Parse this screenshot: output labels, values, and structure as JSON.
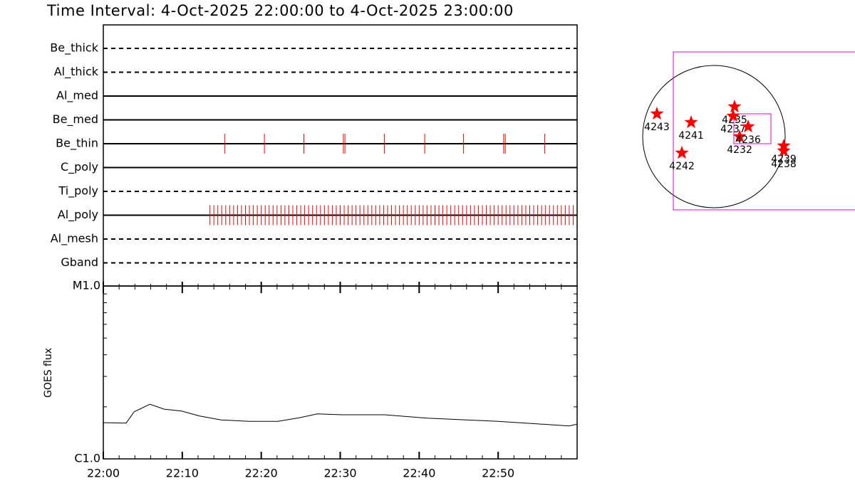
{
  "chart_data": [
    {
      "type": "timeline",
      "title": "Time Interval:  4-Oct-2025 22:00:00 to  4-Oct-2025 23:00:00",
      "xlim": [
        0,
        60
      ],
      "color": "#ff0000",
      "rows": [
        {
          "name": "Be_thick",
          "style": "dashed",
          "values": []
        },
        {
          "name": "Al_thick",
          "style": "dashed",
          "values": []
        },
        {
          "name": "Al_med",
          "style": "solid",
          "values": []
        },
        {
          "name": "Be_med",
          "style": "solid",
          "values": []
        },
        {
          "name": "Be_thin",
          "style": "solid",
          "values": [
            15.4,
            20.4,
            25.4,
            30.4,
            30.6,
            35.6,
            40.7,
            45.6,
            50.7,
            50.9,
            55.9
          ]
        },
        {
          "name": "C_poly",
          "style": "solid",
          "values": []
        },
        {
          "name": "Ti_poly",
          "style": "dashed",
          "values": []
        },
        {
          "name": "Al_poly",
          "style": "solid",
          "values": [
            13.5,
            14,
            14.5,
            15,
            15.5,
            16,
            16.5,
            17,
            17.5,
            18,
            18.5,
            19,
            19.5,
            20,
            20.5,
            21,
            21.5,
            22,
            22.5,
            23,
            23.5,
            24,
            24.5,
            25,
            25.5,
            26,
            26.5,
            27,
            27.5,
            28,
            28.5,
            29,
            29.5,
            30,
            30.5,
            31,
            31.5,
            32,
            32.5,
            33,
            33.5,
            34,
            34.5,
            35,
            35.5,
            36,
            36.5,
            37,
            37.5,
            38,
            38.5,
            39,
            39.5,
            40,
            40.5,
            41,
            41.5,
            42,
            42.5,
            43,
            43.5,
            44,
            44.5,
            45,
            45.5,
            46,
            46.5,
            47,
            47.5,
            48,
            48.5,
            49,
            49.5,
            50,
            50.5,
            51,
            51.5,
            52,
            52.5,
            53,
            53.5,
            54,
            54.5,
            55,
            55.5,
            56,
            56.5,
            57,
            57.5,
            58,
            58.5,
            59,
            59.5
          ]
        },
        {
          "name": "Al_mesh",
          "style": "dashed",
          "values": []
        },
        {
          "name": "Gband",
          "style": "dashed",
          "values": []
        }
      ]
    },
    {
      "type": "line",
      "ylabel": "GOES flux",
      "log": true,
      "color": "#000000",
      "x": [
        0,
        2.9,
        3.9,
        5.9,
        7.7,
        9.9,
        12.2,
        14.9,
        18.5,
        22.1,
        24.8,
        27.1,
        30.2,
        35.6,
        41.0,
        50.0,
        55.4,
        59.0,
        60
      ],
      "values": [
        1.62e-06,
        1.61e-06,
        1.87e-06,
        2.07e-06,
        1.94e-06,
        1.89e-06,
        1.77e-06,
        1.68e-06,
        1.65e-06,
        1.65e-06,
        1.73e-06,
        1.82e-06,
        1.8e-06,
        1.8e-06,
        1.72e-06,
        1.65e-06,
        1.59e-06,
        1.55e-06,
        1.59e-06
      ],
      "xlim": [
        0,
        60
      ],
      "xticks": [
        {
          "value": 0,
          "label": "22:00"
        },
        {
          "value": 10,
          "label": "22:10"
        },
        {
          "value": 20,
          "label": "22:20"
        },
        {
          "value": 30,
          "label": "22:30"
        },
        {
          "value": 40,
          "label": "22:40"
        },
        {
          "value": 50,
          "label": "22:50"
        }
      ],
      "ylim": [
        1e-06,
        1e-05
      ],
      "yticks": [
        {
          "value": 1e-06,
          "label": "C1.0"
        },
        {
          "value": 1e-05,
          "label": "M1.0"
        }
      ]
    },
    {
      "type": "scatter",
      "color": "#ff0000",
      "xlim": [
        -960,
        960
      ],
      "ylim": [
        -960,
        960
      ],
      "labels": [
        "4243",
        "4241",
        "4242",
        "4235",
        "4237",
        "4232",
        "4236",
        "4239",
        "4238"
      ],
      "x": [
        -768,
        -307,
        -432,
        278,
        259,
        346,
        461,
        941,
        941
      ],
      "values": [
        307,
        192,
        -221,
        403,
        278,
        0,
        134,
        -125,
        -192
      ]
    }
  ]
}
